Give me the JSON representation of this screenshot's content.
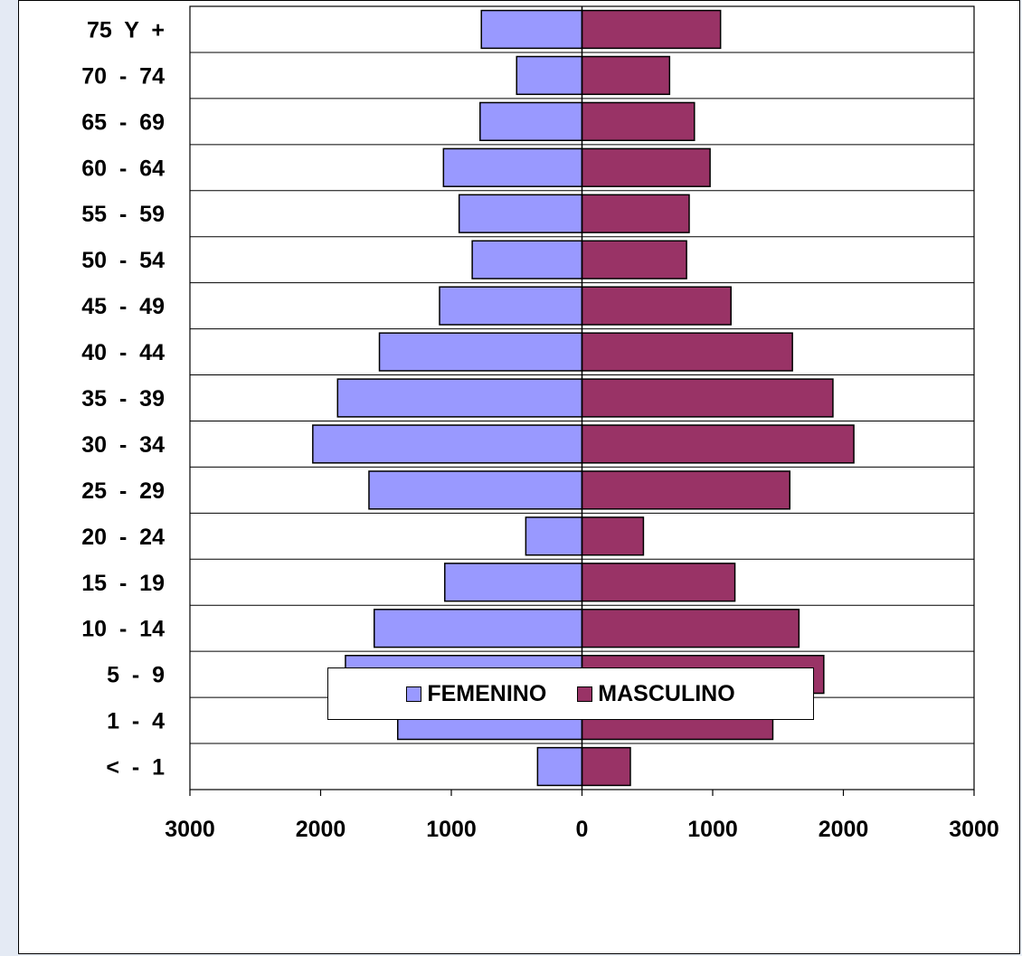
{
  "chart_data": {
    "type": "bar",
    "orientation": "horizontal",
    "layout": "population-pyramid",
    "categories": [
      "75  Y  +",
      "70  -  74",
      "65  -  69",
      "60  -  64",
      "55  -  59",
      "50  -  54",
      "45  -  49",
      "40  -  44",
      "35  -  39",
      "30  -  34",
      "25  -  29",
      "20  -  24",
      "15  -  19",
      "10  -  14",
      "5  -  9",
      "1  -  4",
      "<  -  1"
    ],
    "series": [
      {
        "name": "FEMENINO",
        "color": "#9999ff",
        "side": "left",
        "values": [
          770,
          500,
          780,
          1060,
          940,
          840,
          1090,
          1550,
          1870,
          2060,
          1630,
          430,
          1050,
          1590,
          1810,
          1410,
          340
        ]
      },
      {
        "name": "MASCULINO",
        "color": "#993366",
        "side": "right",
        "values": [
          1060,
          670,
          860,
          980,
          820,
          800,
          1140,
          1610,
          1920,
          2080,
          1590,
          470,
          1170,
          1660,
          1850,
          1460,
          370
        ]
      }
    ],
    "xlim": [
      -3000,
      3000
    ],
    "x_tick_labels": [
      "3000",
      "2000",
      "1000",
      "0",
      "1000",
      "2000",
      "3000"
    ],
    "grid": "horizontal lines between categories",
    "legend_position": "bottom",
    "title": "",
    "xlabel": "",
    "ylabel": ""
  }
}
